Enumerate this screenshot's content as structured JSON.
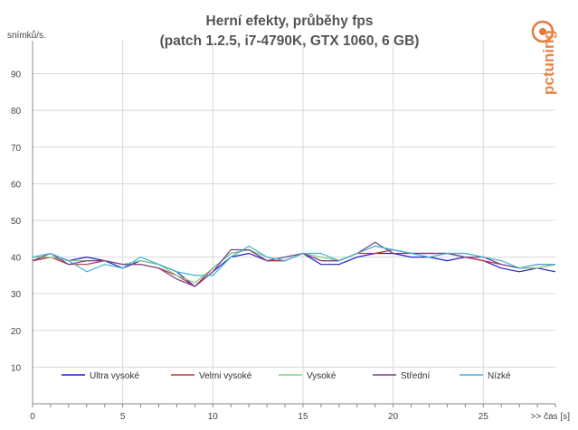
{
  "chart_data": {
    "type": "line",
    "title": "Herní efekty, průběhy fps",
    "subtitle": "(patch 1.2.5, i7-4790K, GTX 1060, 6 GB)",
    "ylabel": "snímků/s.",
    "xlabel": ">> čas [s]",
    "ylim": [
      0,
      99
    ],
    "xlim": [
      0,
      29
    ],
    "yticks": [
      10,
      20,
      30,
      40,
      50,
      60,
      70,
      80,
      90
    ],
    "xticks": [
      0,
      5,
      10,
      15,
      20,
      25
    ],
    "grid": true,
    "legend_position": "bottom",
    "watermark": "pctuning",
    "x": [
      0,
      1,
      2,
      3,
      4,
      5,
      6,
      7,
      8,
      9,
      10,
      11,
      12,
      13,
      14,
      15,
      16,
      17,
      18,
      19,
      20,
      21,
      22,
      23,
      24,
      25,
      26,
      27,
      28,
      29
    ],
    "series": [
      {
        "name": "Ultra vysoké",
        "color": "#1f1fc8",
        "values": [
          39,
          40,
          39,
          40,
          39,
          37,
          39,
          38,
          36,
          32,
          36,
          40,
          41,
          39,
          39,
          41,
          38,
          38,
          40,
          41,
          41,
          40,
          40,
          39,
          40,
          39,
          37,
          36,
          37,
          36
        ]
      },
      {
        "name": "Velmi vysoké",
        "color": "#c83232",
        "values": [
          39,
          40,
          38,
          38,
          39,
          38,
          38,
          37,
          35,
          32,
          37,
          41,
          42,
          39,
          39,
          41,
          39,
          39,
          41,
          41,
          42,
          41,
          41,
          41,
          40,
          39,
          38,
          37,
          37,
          38
        ]
      },
      {
        "name": "Vysoké",
        "color": "#7ed07e",
        "values": [
          40,
          40,
          39,
          39,
          39,
          38,
          39,
          38,
          35,
          33,
          37,
          41,
          42,
          40,
          39,
          41,
          40,
          39,
          41,
          43,
          42,
          41,
          41,
          41,
          41,
          40,
          38,
          37,
          37,
          38
        ]
      },
      {
        "name": "Střední",
        "color": "#7a3c8c",
        "values": [
          39,
          41,
          38,
          39,
          39,
          38,
          38,
          37,
          34,
          32,
          36,
          42,
          42,
          39,
          40,
          41,
          39,
          39,
          41,
          44,
          41,
          41,
          41,
          41,
          40,
          40,
          38,
          37,
          38,
          38
        ]
      },
      {
        "name": "Nízké",
        "color": "#3cb4d2",
        "values": [
          40,
          41,
          39,
          36,
          38,
          37,
          40,
          38,
          36,
          35,
          35,
          40,
          43,
          40,
          39,
          41,
          41,
          39,
          41,
          43,
          42,
          41,
          40,
          41,
          41,
          40,
          39,
          37,
          38,
          38
        ]
      }
    ]
  }
}
